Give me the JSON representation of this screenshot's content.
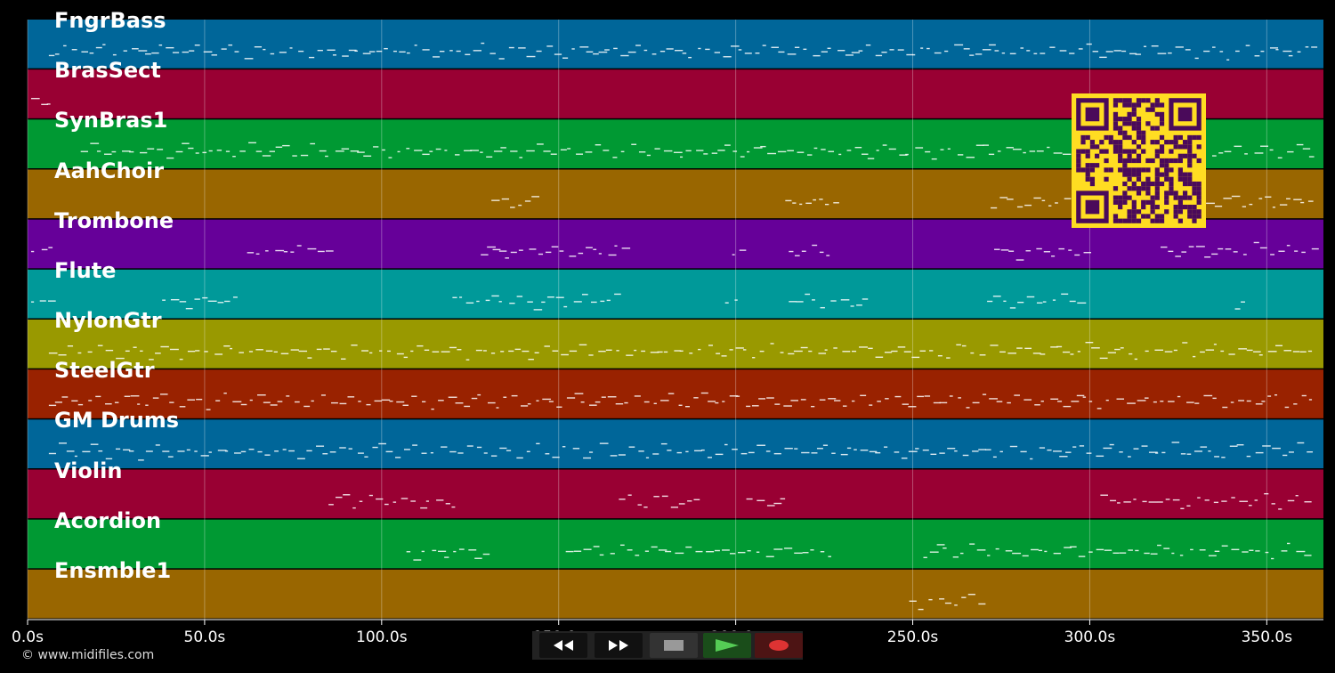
{
  "tracks": [
    {
      "name": "FngrBass",
      "color": "#006699"
    },
    {
      "name": "BrasSect",
      "color": "#990033"
    },
    {
      "name": "SynBras1",
      "color": "#009933"
    },
    {
      "name": "AahChoir",
      "color": "#996600"
    },
    {
      "name": "Trombone",
      "color": "#660099"
    },
    {
      "name": "Flute",
      "color": "#009999"
    },
    {
      "name": "NylonGtr",
      "color": "#999900"
    },
    {
      "name": "SteelGtr",
      "color": "#992200"
    },
    {
      "name": "GM Drums",
      "color": "#006699"
    },
    {
      "name": "Violin",
      "color": "#990033"
    },
    {
      "name": "Acordion",
      "color": "#009933"
    },
    {
      "name": "Ensmble1",
      "color": "#996600"
    }
  ],
  "timeline": {
    "max_seconds": 366,
    "ticks": [
      "0.0s",
      "50.0s",
      "100.0s",
      "150.0s",
      "200.0s",
      "250.0s",
      "300.0s",
      "350.0s"
    ],
    "tick_values": [
      0,
      50,
      100,
      150,
      200,
      250,
      300,
      350
    ]
  },
  "transport": {
    "rewind": "rewind-icon",
    "fast_forward": "fast-forward-icon",
    "stop": "stop-icon",
    "play": "play-icon",
    "record": "record-icon",
    "play_color": "#55cc55",
    "record_color": "#dd3333"
  },
  "credit": "© www.midifiles.com",
  "qr_code": {
    "fg": "#4a0a5a",
    "bg": "#ffdd22"
  }
}
